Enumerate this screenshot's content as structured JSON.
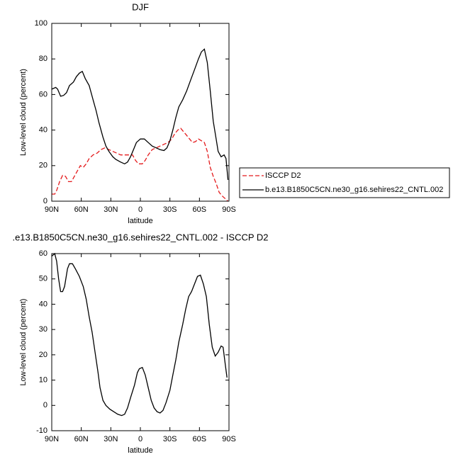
{
  "chart_data": [
    {
      "type": "line",
      "title": "DJF",
      "x_label": "latitude",
      "y_label": "Low-level cloud (percent)",
      "xlim": [
        90,
        -90
      ],
      "xticks": [
        {
          "value": 90,
          "label": "90N"
        },
        {
          "value": 60,
          "label": "60N"
        },
        {
          "value": 30,
          "label": "30N"
        },
        0,
        {
          "value": -30,
          "label": "30S"
        },
        {
          "value": -60,
          "label": "60S"
        },
        {
          "value": -90,
          "label": "90S"
        }
      ],
      "ylim": [
        0,
        100
      ],
      "yticks": [
        0,
        20,
        40,
        60,
        80,
        100
      ],
      "legend": "right",
      "series": [
        {
          "name": "ISCCP D2",
          "color": "#e41a1c",
          "dashed": true,
          "x": [
            90,
            87,
            85,
            82,
            79,
            76,
            73,
            70,
            67,
            64,
            61,
            58,
            55,
            52,
            48,
            44,
            40,
            36,
            32,
            28,
            24,
            20,
            15,
            12,
            8,
            5,
            2,
            -2,
            -5,
            -8,
            -12,
            -16,
            -20,
            -24,
            -28,
            -32,
            -35,
            -38,
            -41,
            -44,
            -47,
            -50,
            -53,
            -56,
            -59,
            -62,
            -65,
            -68,
            -71,
            -74,
            -77,
            -80,
            -83,
            -86,
            -89
          ],
          "values": [
            4,
            4,
            6,
            11,
            14.5,
            14,
            11,
            11,
            14,
            17,
            20,
            19,
            21,
            24,
            26,
            27,
            29,
            30,
            29,
            28,
            27,
            26,
            26,
            26,
            26,
            23,
            21,
            21,
            23,
            26,
            29,
            30,
            31,
            32,
            33,
            35,
            38,
            40,
            41,
            39,
            37,
            35,
            33,
            33.5,
            35,
            34,
            33,
            28,
            19,
            14,
            10,
            5,
            3,
            1.5,
            0
          ]
        },
        {
          "name": "b.e13.B1850C5CN.ne30_g16.sehires22_CNTL.002",
          "color": "#000000",
          "dashed": false,
          "x": [
            90,
            86,
            84,
            81,
            78,
            75,
            72,
            68,
            65,
            62,
            59,
            56,
            52,
            48,
            45,
            42,
            38,
            35,
            32,
            28,
            25,
            20,
            16,
            13,
            10,
            7,
            4,
            0,
            -4,
            -8,
            -12,
            -16,
            -20,
            -24,
            -27,
            -30,
            -33,
            -36,
            -39,
            -43,
            -47,
            -51,
            -55,
            -59,
            -62,
            -65,
            -68,
            -71,
            -74,
            -77,
            -79,
            -82,
            -85,
            -87,
            -89
          ],
          "values": [
            63,
            64,
            63,
            59,
            59.5,
            61,
            65,
            67,
            70,
            72,
            73,
            69,
            65,
            57,
            51,
            44,
            36,
            31,
            28,
            25,
            23.5,
            22,
            21,
            22,
            25,
            29,
            33,
            35,
            35,
            33,
            31,
            30,
            29,
            28.5,
            30,
            34,
            40,
            47,
            53,
            57,
            62,
            68,
            74,
            80,
            84,
            85.5,
            78,
            62,
            45,
            35,
            28,
            25,
            26,
            24,
            12
          ]
        }
      ]
    },
    {
      "type": "line",
      "title": ".e13.B1850C5CN.ne30_g16.sehires22_CNTL.002 - ISCCP D2",
      "x_label": "latitude",
      "y_label": "Low-level cloud (percent)",
      "xlim": [
        90,
        -90
      ],
      "xticks": [
        {
          "value": 90,
          "label": "90N"
        },
        {
          "value": 60,
          "label": "60N"
        },
        {
          "value": 30,
          "label": "30N"
        },
        0,
        {
          "value": -30,
          "label": "30S"
        },
        {
          "value": -60,
          "label": "60S"
        },
        {
          "value": -90,
          "label": "90S"
        }
      ],
      "ylim": [
        -10,
        60
      ],
      "yticks": [
        -10,
        0,
        10,
        20,
        30,
        40,
        50,
        60
      ],
      "series": [
        {
          "color": "#000000",
          "dashed": false,
          "x": [
            90,
            87,
            85,
            83,
            81,
            79,
            77,
            74,
            72,
            69,
            66,
            62,
            58,
            55,
            52,
            49,
            46,
            43,
            41,
            38,
            35,
            31,
            27,
            23,
            19,
            16,
            13,
            10,
            6,
            3,
            1,
            -2,
            -5,
            -8,
            -11,
            -14,
            -17,
            -20,
            -23,
            -26,
            -30,
            -33,
            -36,
            -39,
            -43,
            -46,
            -49,
            -52,
            -55,
            -58,
            -61,
            -64,
            -67,
            -70,
            -73,
            -76,
            -79,
            -82,
            -84,
            -86,
            -88
          ],
          "values": [
            59,
            60,
            57,
            50,
            45,
            45,
            47,
            54,
            56,
            56,
            54,
            51,
            47,
            42,
            35,
            29,
            21,
            13,
            7,
            2,
            0,
            -1.5,
            -2.5,
            -3.5,
            -4,
            -3.5,
            -1,
            3,
            8,
            13,
            14.5,
            15,
            12,
            7,
            2,
            -1,
            -2.5,
            -3,
            -2,
            1,
            6,
            12,
            18,
            25,
            32,
            38,
            43,
            45,
            48,
            51,
            51.5,
            48,
            43,
            32,
            23,
            19.5,
            21,
            23.5,
            23,
            17,
            11
          ]
        }
      ]
    }
  ]
}
